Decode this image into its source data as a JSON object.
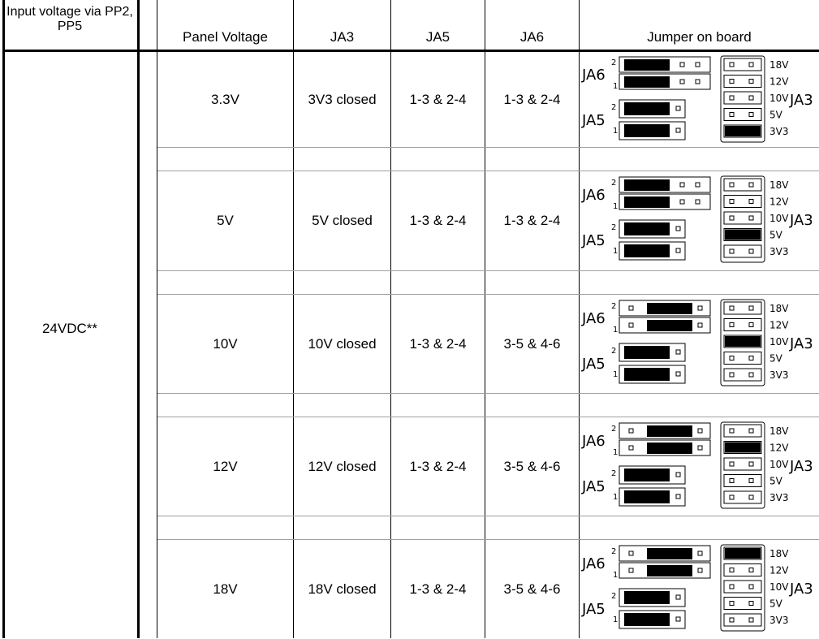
{
  "header": {
    "input": "Input voltage via PP2, PP5",
    "panel": "Panel Voltage",
    "ja3": "JA3",
    "ja5": "JA5",
    "ja6": "JA6",
    "jumper": "Jumper on board"
  },
  "input_voltage": "24VDC**",
  "rows": [
    {
      "panel": "3.3V",
      "ja3": "3V3 closed",
      "ja5": "1-3 & 2-4",
      "ja6": "1-3 & 2-4",
      "ja6_pos": "left",
      "ja3_pos": "3V3"
    },
    {
      "panel": "5V",
      "ja3": "5V closed",
      "ja5": "1-3 & 2-4",
      "ja6": "1-3 & 2-4",
      "ja6_pos": "left",
      "ja3_pos": "5V"
    },
    {
      "panel": "10V",
      "ja3": "10V closed",
      "ja5": "1-3 & 2-4",
      "ja6": "3-5 & 4-6",
      "ja6_pos": "right",
      "ja3_pos": "10V"
    },
    {
      "panel": "12V",
      "ja3": "12V closed",
      "ja5": "1-3 & 2-4",
      "ja6": "3-5 & 4-6",
      "ja6_pos": "right",
      "ja3_pos": "12V"
    },
    {
      "panel": "18V",
      "ja3": "18V closed",
      "ja5": "1-3 & 2-4",
      "ja6": "3-5 & 4-6",
      "ja6_pos": "right",
      "ja3_pos": "18V"
    }
  ],
  "diagram_labels": {
    "ja6": "JA6",
    "ja5": "JA5",
    "ja3": "JA3",
    "pin2": "2",
    "pin1": "1",
    "voltages": [
      "18V",
      "12V",
      "10V",
      "5V",
      "3V3"
    ]
  }
}
